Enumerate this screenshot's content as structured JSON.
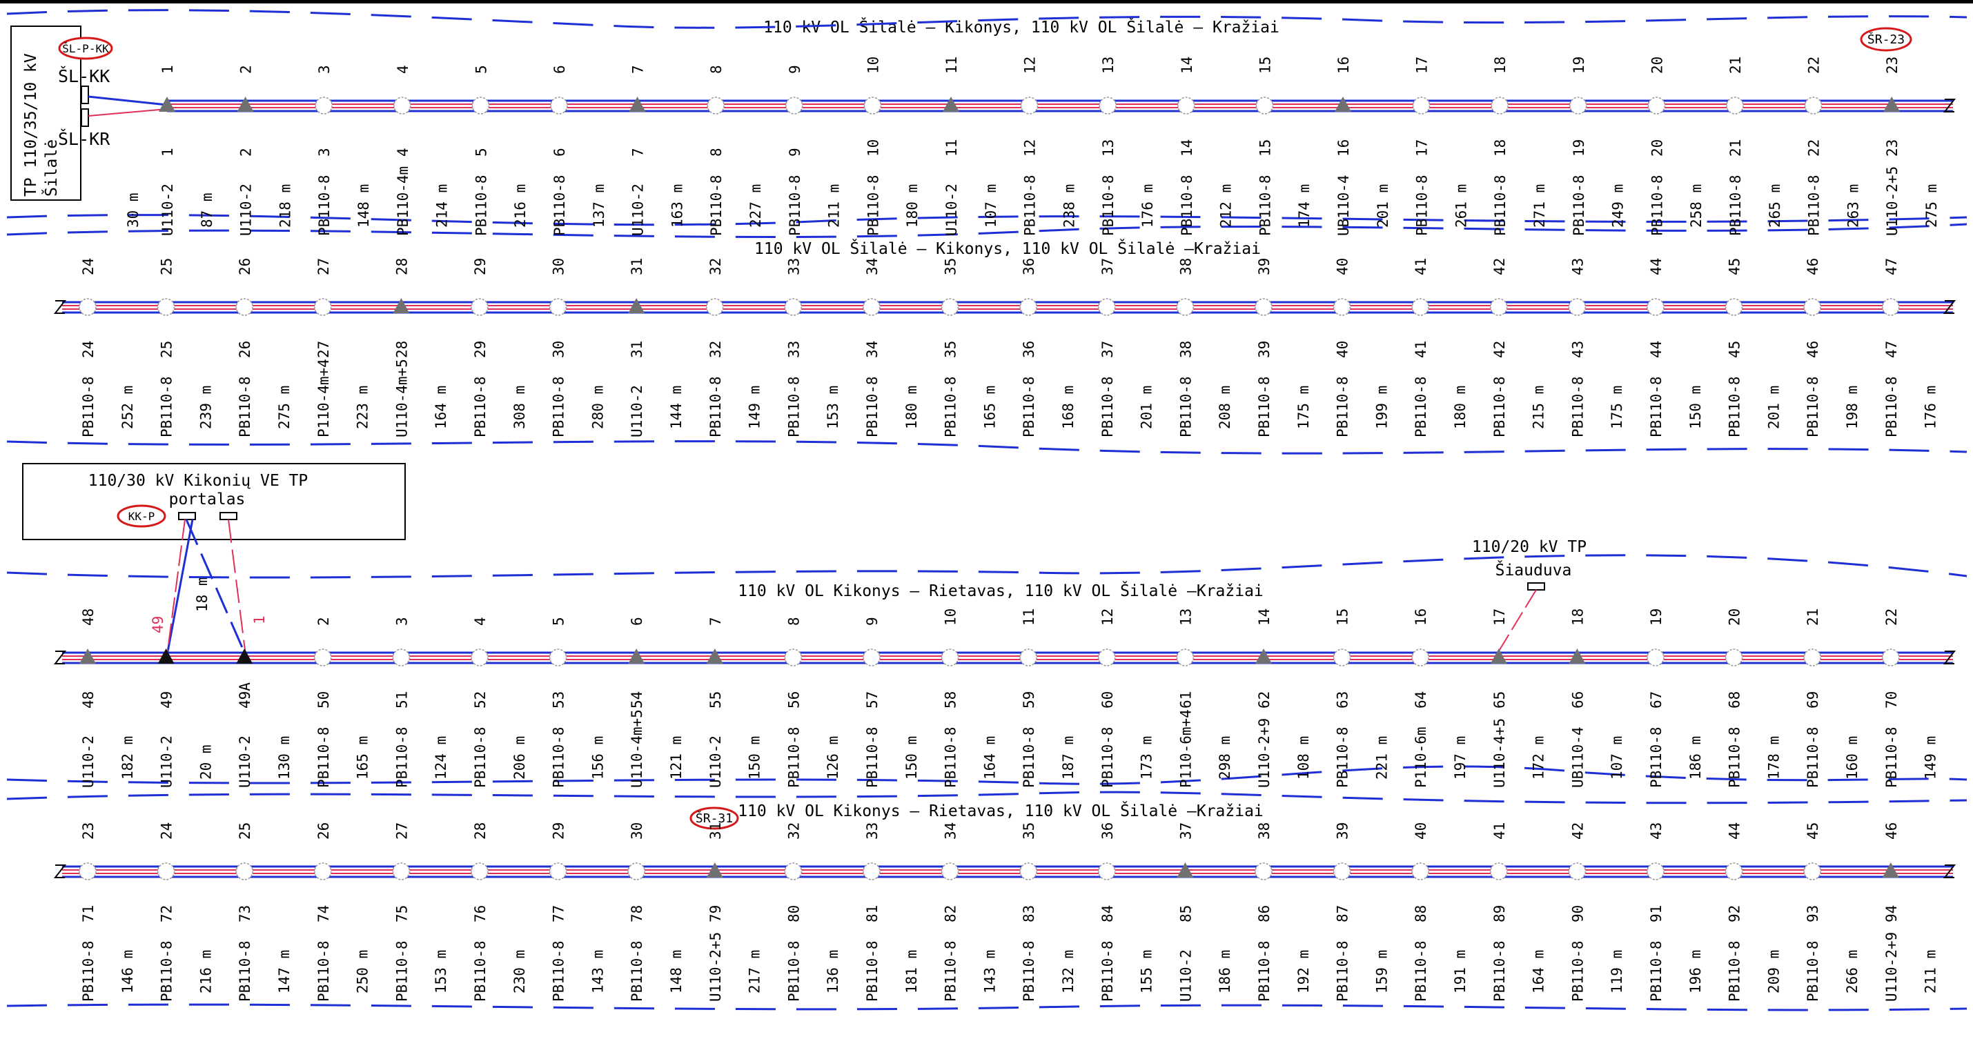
{
  "colors": {
    "boundary": "#1f2fd6",
    "red_wire": "#e0305a",
    "oval": "#d61818",
    "anchor_pole": "#707070"
  },
  "rows": [
    {
      "title": "110 kV OL Šilalė – Kikonys, 110 kV OL Šilalė – Kražiai",
      "poles": [
        {
          "top": "1",
          "bottom": "1",
          "type": "U110-2",
          "anchor": true
        },
        {
          "top": "2",
          "bottom": "2",
          "type": "U110-2",
          "anchor": true
        },
        {
          "top": "3",
          "bottom": "3",
          "type": "PB110-8"
        },
        {
          "top": "4",
          "bottom": "4",
          "type": "PB110-4m"
        },
        {
          "top": "5",
          "bottom": "5",
          "type": "PB110-8"
        },
        {
          "top": "6",
          "bottom": "6",
          "type": "PB110-8"
        },
        {
          "top": "7",
          "bottom": "7",
          "type": "U110-2",
          "anchor": true
        },
        {
          "top": "8",
          "bottom": "8",
          "type": "PB110-8"
        },
        {
          "top": "9",
          "bottom": "9",
          "type": "PB110-8"
        },
        {
          "top": "10",
          "bottom": "10",
          "type": "PB110-8"
        },
        {
          "top": "11",
          "bottom": "11",
          "type": "U110-2",
          "anchor": true
        },
        {
          "top": "12",
          "bottom": "12",
          "type": "PB110-8"
        },
        {
          "top": "13",
          "bottom": "13",
          "type": "PB110-8"
        },
        {
          "top": "14",
          "bottom": "14",
          "type": "PB110-8"
        },
        {
          "top": "15",
          "bottom": "15",
          "type": "PB110-8"
        },
        {
          "top": "16",
          "bottom": "16",
          "type": "UB110-4",
          "anchor": true
        },
        {
          "top": "17",
          "bottom": "17",
          "type": "PB110-8"
        },
        {
          "top": "18",
          "bottom": "18",
          "type": "PB110-8"
        },
        {
          "top": "19",
          "bottom": "19",
          "type": "PB110-8"
        },
        {
          "top": "20",
          "bottom": "20",
          "type": "PB110-8"
        },
        {
          "top": "21",
          "bottom": "21",
          "type": "PB110-8"
        },
        {
          "top": "22",
          "bottom": "22",
          "type": "PB110-8"
        },
        {
          "top": "23",
          "bottom": "23",
          "type": "U110-2+5",
          "anchor": true
        }
      ],
      "spans": [
        "30 m",
        "87 m",
        "218 m",
        "148 m",
        "214 m",
        "216 m",
        "137 m",
        "163 m",
        "227 m",
        "211 m",
        "180 m",
        "107 m",
        "238 m",
        "176 m",
        "212 m",
        "174 m",
        "201 m",
        "261 m",
        "271 m",
        "249 m",
        "258 m",
        "265 m",
        "263 m",
        "275 m"
      ]
    },
    {
      "title": "110 kV OL Šilalė – Kikonys, 110 kV OL Šilalė –Kražiai",
      "poles": [
        {
          "top": "24",
          "bottom": "24",
          "type": "PB110-8"
        },
        {
          "top": "25",
          "bottom": "25",
          "type": "PB110-8"
        },
        {
          "top": "26",
          "bottom": "26",
          "type": "PB110-8"
        },
        {
          "top": "27",
          "bottom": "27",
          "type": "P110-4m+4"
        },
        {
          "top": "28",
          "bottom": "28",
          "type": "U110-4m+5",
          "anchor": true
        },
        {
          "top": "29",
          "bottom": "29",
          "type": "PB110-8"
        },
        {
          "top": "30",
          "bottom": "30",
          "type": "PB110-8"
        },
        {
          "top": "31",
          "bottom": "31",
          "type": "U110-2",
          "anchor": true
        },
        {
          "top": "32",
          "bottom": "32",
          "type": "PB110-8"
        },
        {
          "top": "33",
          "bottom": "33",
          "type": "PB110-8"
        },
        {
          "top": "34",
          "bottom": "34",
          "type": "PB110-8"
        },
        {
          "top": "35",
          "bottom": "35",
          "type": "PB110-8"
        },
        {
          "top": "36",
          "bottom": "36",
          "type": "PB110-8"
        },
        {
          "top": "37",
          "bottom": "37",
          "type": "PB110-8"
        },
        {
          "top": "38",
          "bottom": "38",
          "type": "PB110-8"
        },
        {
          "top": "39",
          "bottom": "39",
          "type": "PB110-8"
        },
        {
          "top": "40",
          "bottom": "40",
          "type": "PB110-8"
        },
        {
          "top": "41",
          "bottom": "41",
          "type": "PB110-8"
        },
        {
          "top": "42",
          "bottom": "42",
          "type": "PB110-8"
        },
        {
          "top": "43",
          "bottom": "43",
          "type": "PB110-8"
        },
        {
          "top": "44",
          "bottom": "44",
          "type": "PB110-8"
        },
        {
          "top": "45",
          "bottom": "45",
          "type": "PB110-8"
        },
        {
          "top": "46",
          "bottom": "46",
          "type": "PB110-8"
        },
        {
          "top": "47",
          "bottom": "47",
          "type": "PB110-8"
        }
      ],
      "spans": [
        "252 m",
        "239 m",
        "275 m",
        "223 m",
        "164 m",
        "308 m",
        "280 m",
        "144 m",
        "149 m",
        "153 m",
        "180 m",
        "165 m",
        "168 m",
        "201 m",
        "208 m",
        "175 m",
        "199 m",
        "180 m",
        "215 m",
        "175 m",
        "150 m",
        "201 m",
        "198 m",
        "176 m"
      ]
    },
    {
      "title": "110 kV OL  Kikonys – Rietavas, 110 kV OL Šilalė –Kražiai",
      "poles": [
        {
          "top": "48",
          "bottom": "48",
          "type": "U110-2",
          "anchor": true
        },
        {
          "top": "",
          "bottom": "49",
          "type": "U110-2",
          "anchor": true,
          "dark": true
        },
        {
          "top": "",
          "bottom": "49A",
          "type": "U110-2",
          "anchor": true,
          "dark": true
        },
        {
          "top": "2",
          "bottom": "50",
          "type": "PB110-8"
        },
        {
          "top": "3",
          "bottom": "51",
          "type": "PB110-8"
        },
        {
          "top": "4",
          "bottom": "52",
          "type": "PB110-8"
        },
        {
          "top": "5",
          "bottom": "53",
          "type": "PB110-8"
        },
        {
          "top": "6",
          "bottom": "54",
          "type": "U110-4m+5",
          "anchor": true
        },
        {
          "top": "7",
          "bottom": "55",
          "type": "U110-2",
          "anchor": true
        },
        {
          "top": "8",
          "bottom": "56",
          "type": "PB110-8"
        },
        {
          "top": "9",
          "bottom": "57",
          "type": "PB110-8"
        },
        {
          "top": "10",
          "bottom": "58",
          "type": "PB110-8"
        },
        {
          "top": "11",
          "bottom": "59",
          "type": "PB110-8"
        },
        {
          "top": "12",
          "bottom": "60",
          "type": "PB110-8"
        },
        {
          "top": "13",
          "bottom": "61",
          "type": "P110-6m+4"
        },
        {
          "top": "14",
          "bottom": "62",
          "type": "U110-2+9",
          "anchor": true
        },
        {
          "top": "15",
          "bottom": "63",
          "type": "PB110-8"
        },
        {
          "top": "16",
          "bottom": "64",
          "type": "P110-6m"
        },
        {
          "top": "17",
          "bottom": "65",
          "type": "U110-4+5",
          "anchor": true
        },
        {
          "top": "18",
          "bottom": "66",
          "type": "UB110-4",
          "anchor": true
        },
        {
          "top": "19",
          "bottom": "67",
          "type": "PB110-8"
        },
        {
          "top": "20",
          "bottom": "68",
          "type": "PB110-8"
        },
        {
          "top": "21",
          "bottom": "69",
          "type": "PB110-8"
        },
        {
          "top": "22",
          "bottom": "70",
          "type": "PB110-8"
        }
      ],
      "spans": [
        "182 m",
        "20 m",
        "130 m",
        "165 m",
        "124 m",
        "206 m",
        "156 m",
        "121 m",
        "150 m",
        "126 m",
        "150 m",
        "164 m",
        "187 m",
        "173 m",
        "298 m",
        "108 m",
        "221 m",
        "197 m",
        "172 m",
        "107 m",
        "186 m",
        "178 m",
        "160 m",
        "149 m"
      ],
      "portal_spans": {
        "blue": "18 m",
        "red_a": "49",
        "red_b": "1"
      }
    },
    {
      "title": "110 kV OL  Kikonys – Rietavas, 110 kV OL Šilalė –Kražiai",
      "poles": [
        {
          "top": "23",
          "bottom": "71",
          "type": "PB110-8"
        },
        {
          "top": "24",
          "bottom": "72",
          "type": "PB110-8"
        },
        {
          "top": "25",
          "bottom": "73",
          "type": "PB110-8"
        },
        {
          "top": "26",
          "bottom": "74",
          "type": "PB110-8"
        },
        {
          "top": "27",
          "bottom": "75",
          "type": "PB110-8"
        },
        {
          "top": "28",
          "bottom": "76",
          "type": "PB110-8"
        },
        {
          "top": "29",
          "bottom": "77",
          "type": "PB110-8"
        },
        {
          "top": "30",
          "bottom": "78",
          "type": "PB110-8"
        },
        {
          "top": "31",
          "bottom": "79",
          "type": "U110-2+5",
          "anchor": true
        },
        {
          "top": "32",
          "bottom": "80",
          "type": "PB110-8"
        },
        {
          "top": "33",
          "bottom": "81",
          "type": "PB110-8"
        },
        {
          "top": "34",
          "bottom": "82",
          "type": "PB110-8"
        },
        {
          "top": "35",
          "bottom": "83",
          "type": "PB110-8"
        },
        {
          "top": "36",
          "bottom": "84",
          "type": "PB110-8"
        },
        {
          "top": "37",
          "bottom": "85",
          "type": "U110-2",
          "anchor": true
        },
        {
          "top": "38",
          "bottom": "86",
          "type": "PB110-8"
        },
        {
          "top": "39",
          "bottom": "87",
          "type": "PB110-8"
        },
        {
          "top": "40",
          "bottom": "88",
          "type": "PB110-8"
        },
        {
          "top": "41",
          "bottom": "89",
          "type": "PB110-8"
        },
        {
          "top": "42",
          "bottom": "90",
          "type": "PB110-8"
        },
        {
          "top": "43",
          "bottom": "91",
          "type": "PB110-8"
        },
        {
          "top": "44",
          "bottom": "92",
          "type": "PB110-8"
        },
        {
          "top": "45",
          "bottom": "93",
          "type": "PB110-8"
        },
        {
          "top": "46",
          "bottom": "94",
          "type": "U110-2+9",
          "anchor": true
        }
      ],
      "spans": [
        "146 m",
        "216 m",
        "147 m",
        "250 m",
        "153 m",
        "230 m",
        "143 m",
        "148 m",
        "217 m",
        "136 m",
        "181 m",
        "143 m",
        "132 m",
        "155 m",
        "186 m",
        "192 m",
        "159 m",
        "191 m",
        "164 m",
        "119 m",
        "196 m",
        "209 m",
        "266 m",
        "211 m"
      ]
    }
  ],
  "substation_silale": {
    "label_line1": "TP 110/35/10 kV",
    "label_line2": "Šilalė",
    "tag": "ŠL-P-KK",
    "bay_kk": "ŠL-KK",
    "bay_kr": "ŠL-KR"
  },
  "substation_kikoniu": {
    "line1": "110/30 kV Kikonių VE TP",
    "line2": "portalas",
    "tag": "KK-P"
  },
  "substation_siauduva": {
    "line1": "110/20 kV TP",
    "line2": "Šiauduva"
  },
  "tags": {
    "sr23": "ŠR-23",
    "sr31": "ŠR-31"
  }
}
